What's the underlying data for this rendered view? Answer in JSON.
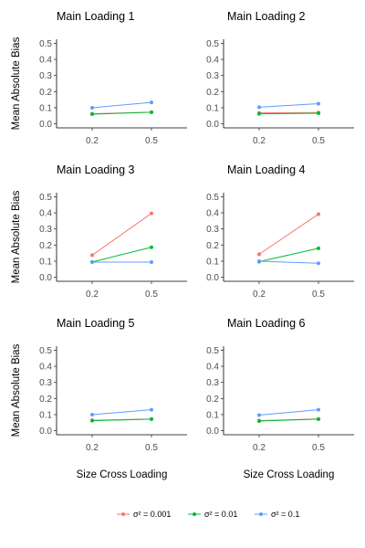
{
  "chart_data": {
    "type": "line",
    "layout": "3x2 facet grid",
    "xlabel": "Size Cross Loading",
    "ylabel": "Mean Absolute Bias",
    "categories": [
      "0.2",
      "0.5"
    ],
    "ylim": [
      0,
      0.5
    ],
    "yticks": [
      "0.0",
      "0.1",
      "0.2",
      "0.3",
      "0.4",
      "0.5"
    ],
    "legend_position": "bottom",
    "series_names": [
      "σ² = 0.001",
      "σ² = 0.01",
      "σ² = 0.1"
    ],
    "series_colors": [
      "#F8766D",
      "#00BA38",
      "#619CFF"
    ],
    "panels": [
      {
        "title": "Main Loading 1",
        "series": [
          {
            "name": "σ² = 0.001",
            "values": [
              0.063,
              0.072
            ]
          },
          {
            "name": "σ² = 0.01",
            "values": [
              0.06,
              0.072
            ]
          },
          {
            "name": "σ² = 0.1",
            "values": [
              0.1,
              0.133
            ]
          }
        ]
      },
      {
        "title": "Main Loading 2",
        "series": [
          {
            "name": "σ² = 0.001",
            "values": [
              0.068,
              0.07
            ]
          },
          {
            "name": "σ² = 0.01",
            "values": [
              0.062,
              0.066
            ]
          },
          {
            "name": "σ² = 0.1",
            "values": [
              0.103,
              0.125
            ]
          }
        ]
      },
      {
        "title": "Main Loading 3",
        "series": [
          {
            "name": "σ² = 0.001",
            "values": [
              0.137,
              0.397
            ]
          },
          {
            "name": "σ² = 0.01",
            "values": [
              0.095,
              0.186
            ]
          },
          {
            "name": "σ² = 0.1",
            "values": [
              0.094,
              0.094
            ]
          }
        ]
      },
      {
        "title": "Main Loading 4",
        "series": [
          {
            "name": "σ² = 0.001",
            "values": [
              0.143,
              0.392
            ]
          },
          {
            "name": "σ² = 0.01",
            "values": [
              0.097,
              0.18
            ]
          },
          {
            "name": "σ² = 0.1",
            "values": [
              0.1,
              0.087
            ]
          }
        ]
      },
      {
        "title": "Main Loading 5",
        "series": [
          {
            "name": "σ² = 0.001",
            "values": [
              0.065,
              0.072
            ]
          },
          {
            "name": "σ² = 0.01",
            "values": [
              0.062,
              0.072
            ]
          },
          {
            "name": "σ² = 0.1",
            "values": [
              0.1,
              0.13
            ]
          }
        ]
      },
      {
        "title": "Main Loading 6",
        "series": [
          {
            "name": "σ² = 0.001",
            "values": [
              0.063,
              0.073
            ]
          },
          {
            "name": "σ² = 0.01",
            "values": [
              0.06,
              0.072
            ]
          },
          {
            "name": "σ² = 0.1",
            "values": [
              0.097,
              0.13
            ]
          }
        ]
      }
    ]
  }
}
